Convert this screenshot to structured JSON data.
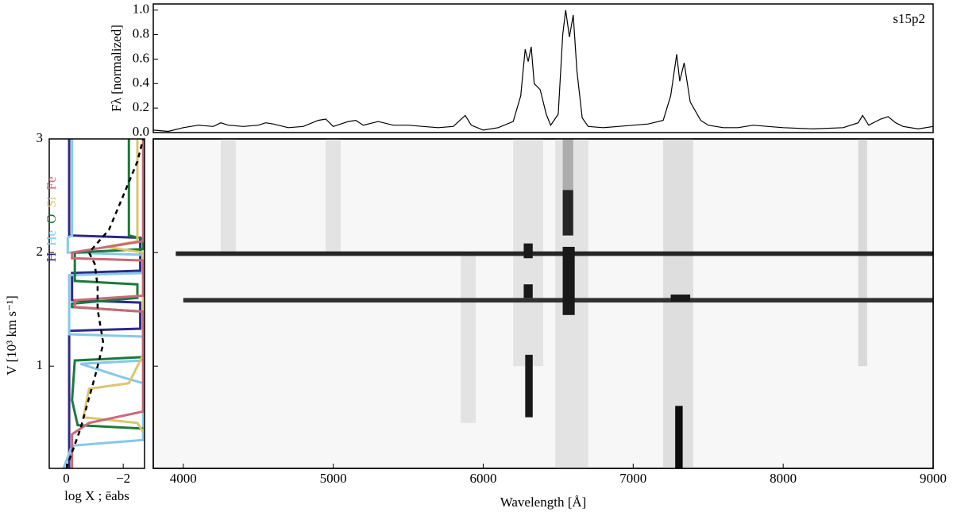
{
  "chart_data": [
    {
      "type": "line",
      "ylabel": "Fλ [normalized]",
      "annotation": "s15p2",
      "color": "#000000",
      "xlim": [
        3800,
        9000
      ],
      "ylim": [
        0,
        1.05
      ],
      "yticks": [
        {
          "value": 0,
          "label": "0.0"
        },
        0.2,
        0.4,
        0.6,
        0.8,
        {
          "value": 1,
          "label": "1.0"
        }
      ],
      "x": [
        3800,
        3900,
        4000,
        4100,
        4200,
        4250,
        4300,
        4400,
        4500,
        4550,
        4600,
        4700,
        4800,
        4900,
        4950,
        5000,
        5100,
        5150,
        5200,
        5300,
        5400,
        5500,
        5600,
        5700,
        5800,
        5880,
        5920,
        6000,
        6100,
        6200,
        6250,
        6280,
        6300,
        6320,
        6340,
        6380,
        6420,
        6450,
        6500,
        6530,
        6550,
        6575,
        6600,
        6625,
        6660,
        6700,
        6800,
        6900,
        7000,
        7100,
        7200,
        7250,
        7290,
        7310,
        7340,
        7380,
        7450,
        7500,
        7600,
        7700,
        7800,
        7900,
        8000,
        8200,
        8400,
        8500,
        8530,
        8570,
        8650,
        8700,
        8750,
        8800,
        8900,
        9000
      ],
      "values": [
        0.02,
        0.01,
        0.04,
        0.06,
        0.05,
        0.08,
        0.06,
        0.05,
        0.06,
        0.08,
        0.07,
        0.04,
        0.05,
        0.1,
        0.11,
        0.05,
        0.09,
        0.1,
        0.06,
        0.09,
        0.06,
        0.06,
        0.05,
        0.04,
        0.05,
        0.14,
        0.06,
        0.02,
        0.04,
        0.09,
        0.3,
        0.68,
        0.58,
        0.7,
        0.4,
        0.35,
        0.15,
        0.06,
        0.15,
        0.8,
        1.0,
        0.78,
        0.96,
        0.5,
        0.12,
        0.05,
        0.04,
        0.05,
        0.06,
        0.07,
        0.1,
        0.3,
        0.64,
        0.42,
        0.57,
        0.25,
        0.1,
        0.06,
        0.04,
        0.04,
        0.06,
        0.05,
        0.04,
        0.03,
        0.04,
        0.08,
        0.14,
        0.06,
        0.11,
        0.13,
        0.08,
        0.05,
        0.03,
        0.05
      ]
    },
    {
      "type": "profile",
      "ylabel": "V [10³ km s⁻¹]",
      "xlabel": "log X ; ēabs",
      "xlim": [
        0.6,
        -2.75
      ],
      "ylim": [
        0.1,
        3
      ],
      "xticks": [
        0,
        {
          "value": -2,
          "label": "−2"
        }
      ],
      "yticks": [
        1,
        2,
        3
      ],
      "series": [
        {
          "name": "H",
          "color": "#2e2a86",
          "x": [
            -0.1,
            -0.1,
            -2.6,
            -2.6,
            -0.2,
            -0.2,
            -2.6,
            -2.6,
            -0.1,
            -0.1
          ],
          "y": [
            3,
            2.15,
            2.13,
            1.84,
            1.82,
            1.58,
            1.56,
            1.33,
            1.31,
            0.1
          ]
        },
        {
          "name": "He",
          "color": "#86c8ea",
          "x": [
            -0.2,
            -0.2,
            -0.05,
            -0.05,
            -2.7,
            -2.7,
            -0.1,
            -0.1,
            -2.7,
            -2.7,
            -0.5,
            -2.0,
            -2.7,
            -2.7,
            -0.2,
            0.1
          ],
          "y": [
            3,
            2.15,
            2.13,
            2.0,
            1.98,
            1.82,
            1.8,
            1.28,
            1.26,
            1.05,
            1.02,
            0.9,
            0.85,
            0.35,
            0.3,
            0.1
          ]
        },
        {
          "name": "O",
          "color": "#1b7a3a",
          "x": [
            -2.2,
            -2.2,
            -2.7,
            -2.7,
            -0.3,
            -0.3,
            -2.5,
            -2.5,
            -0.2,
            -0.2,
            -2.7,
            -2.7,
            -0.3,
            -0.2,
            -0.4,
            -2.7
          ],
          "y": [
            3,
            2.15,
            2.12,
            2.03,
            2.0,
            1.75,
            1.72,
            1.6,
            1.55,
            1.52,
            1.48,
            1.08,
            1.05,
            0.7,
            0.48,
            0.45
          ]
        },
        {
          "name": "Si",
          "color": "#dcc66e",
          "x": [
            -2.5,
            -2.5,
            -1.4,
            -2.7,
            -2.7,
            -2.2,
            -0.8,
            -0.6,
            -2.5,
            -2.7
          ],
          "y": [
            3,
            2.1,
            2.05,
            2.0,
            1.1,
            0.85,
            0.8,
            0.55,
            0.5,
            0.42
          ]
        },
        {
          "name": "Fe",
          "color": "#c86a78",
          "x": [
            -2.7,
            -2.7,
            -0.2,
            -0.2,
            -2.7,
            -2.7,
            -0.3,
            -0.3,
            -2.7,
            -2.7,
            -0.8,
            -0.2,
            -0.2
          ],
          "y": [
            3,
            2.1,
            2.0,
            1.95,
            1.93,
            1.62,
            1.58,
            1.52,
            1.48,
            0.6,
            0.5,
            0.4,
            0.1
          ]
        },
        {
          "color": "#000000",
          "dashed": true,
          "x": [
            0,
            -0.5,
            -1.0,
            -1.3,
            -1.1,
            -1.1,
            -1.0,
            -0.8,
            -1.5,
            -2.0,
            -2.5,
            -2.7
          ],
          "y": [
            0.1,
            0.45,
            0.9,
            1.2,
            1.5,
            1.7,
            1.9,
            2.0,
            2.2,
            2.5,
            2.8,
            3.0
          ]
        }
      ]
    },
    {
      "type": "heatmap",
      "xlabel": "Wavelength [Å]",
      "xlim": [
        3800,
        9000
      ],
      "ylim": [
        0.1,
        3
      ],
      "xticks": [
        4000,
        5000,
        6000,
        7000,
        8000,
        9000
      ],
      "yticks": [
        1,
        2,
        3
      ],
      "patches": [
        {
          "wavelength": [
            4250,
            4350
          ],
          "v": [
            2.0,
            3
          ],
          "shade": 0.08
        },
        {
          "wavelength": [
            4950,
            5050
          ],
          "v": [
            2.0,
            3
          ],
          "shade": 0.08
        },
        {
          "wavelength": [
            5850,
            5950
          ],
          "v": [
            0.5,
            2
          ],
          "shade": 0.08
        },
        {
          "wavelength": [
            6200,
            6400
          ],
          "v": [
            1.0,
            3
          ],
          "shade": 0.08
        },
        {
          "wavelength": [
            6480,
            6700
          ],
          "v": [
            0.1,
            3
          ],
          "shade": 0.08
        },
        {
          "wavelength": [
            7200,
            7400
          ],
          "v": [
            0.1,
            3
          ],
          "shade": 0.1
        },
        {
          "wavelength": [
            8500,
            8560
          ],
          "v": [
            1.0,
            3
          ],
          "shade": 0.12
        },
        {
          "wavelength": [
            6530,
            6600
          ],
          "v": [
            2.55,
            3
          ],
          "shade": 0.3
        },
        {
          "wavelength": [
            3950,
            9000
          ],
          "v": [
            1.97,
            2.01
          ],
          "shade": 0.85
        },
        {
          "wavelength": [
            4000,
            9000
          ],
          "v": [
            1.56,
            1.6
          ],
          "shade": 0.8
        },
        {
          "wavelength": [
            6270,
            6330
          ],
          "v": [
            1.95,
            2.08
          ],
          "shade": 0.9
        },
        {
          "wavelength": [
            6270,
            6330
          ],
          "v": [
            1.6,
            1.72
          ],
          "shade": 0.9
        },
        {
          "wavelength": [
            6530,
            6610
          ],
          "v": [
            1.45,
            2.05
          ],
          "shade": 0.9
        },
        {
          "wavelength": [
            6530,
            6600
          ],
          "v": [
            2.15,
            2.55
          ],
          "shade": 0.85
        },
        {
          "wavelength": [
            6280,
            6330
          ],
          "v": [
            0.55,
            1.1
          ],
          "shade": 0.9
        },
        {
          "wavelength": [
            7280,
            7330
          ],
          "v": [
            0.1,
            0.65
          ],
          "shade": 0.95
        },
        {
          "wavelength": [
            7250,
            7380
          ],
          "v": [
            1.57,
            1.63
          ],
          "shade": 0.9
        }
      ]
    }
  ]
}
